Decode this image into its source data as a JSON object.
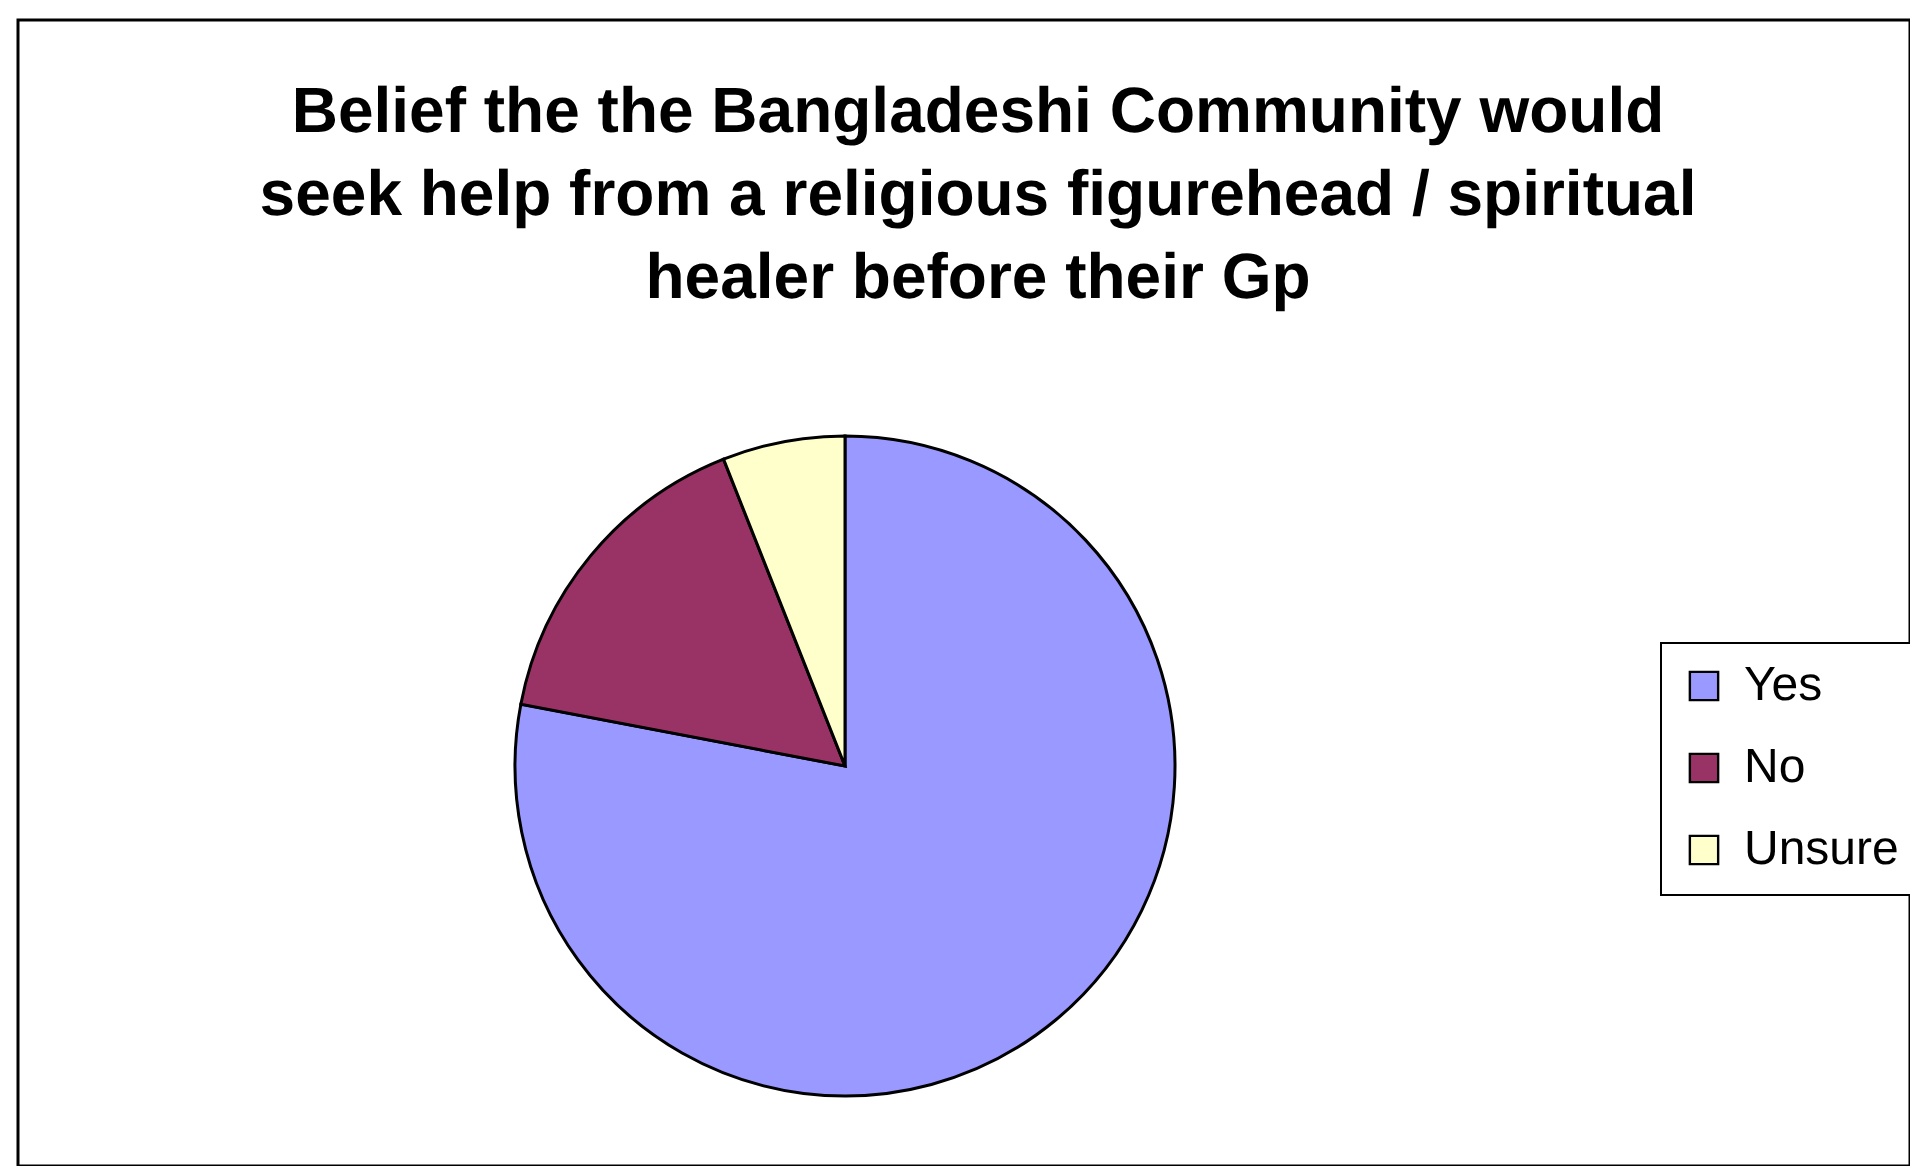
{
  "chart_data": {
    "type": "pie",
    "title": "Belief the the Bangladeshi Community would\nseek help from a religious figurehead / spiritual\nhealer before their Gp",
    "categories": [
      "Yes",
      "No",
      "Unsure"
    ],
    "values": [
      78,
      16,
      6
    ],
    "colors": [
      "#9999ff",
      "#993366",
      "#ffffcc"
    ],
    "legend": "right"
  }
}
